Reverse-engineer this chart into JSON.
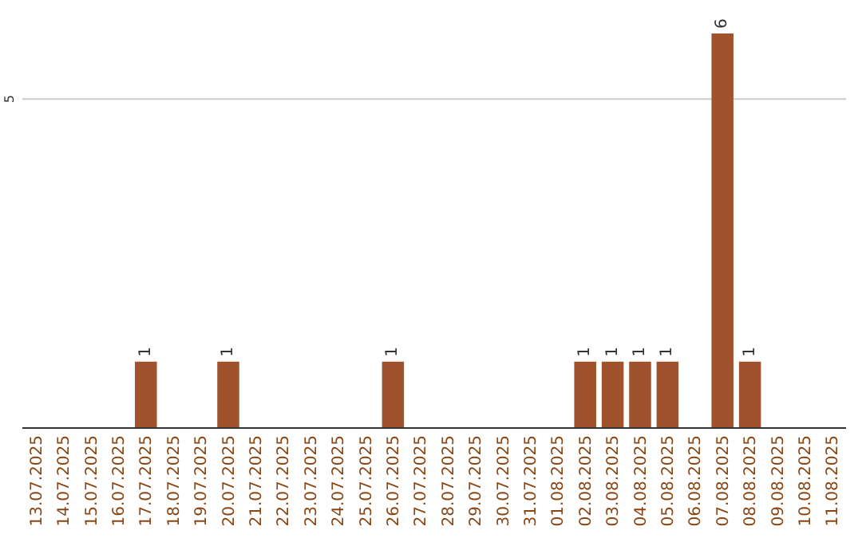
{
  "chart_data": {
    "type": "bar",
    "categories": [
      "13.07.2025",
      "14.07.2025",
      "15.07.2025",
      "16.07.2025",
      "17.07.2025",
      "18.07.2025",
      "19.07.2025",
      "20.07.2025",
      "21.07.2025",
      "22.07.2025",
      "23.07.2025",
      "24.07.2025",
      "25.07.2025",
      "26.07.2025",
      "27.07.2025",
      "28.07.2025",
      "29.07.2025",
      "30.07.2025",
      "31.07.2025",
      "01.08.2025",
      "02.08.2025",
      "03.08.2025",
      "04.08.2025",
      "05.08.2025",
      "06.08.2025",
      "07.08.2025",
      "08.08.2025",
      "09.08.2025",
      "10.08.2025",
      "11.08.2025"
    ],
    "values": [
      0,
      0,
      0,
      0,
      1,
      0,
      0,
      1,
      0,
      0,
      0,
      0,
      0,
      1,
      0,
      0,
      0,
      0,
      0,
      0,
      1,
      1,
      1,
      1,
      0,
      6,
      1,
      0,
      0,
      0
    ],
    "value_labels": [
      null,
      null,
      null,
      null,
      "1",
      null,
      null,
      "1",
      null,
      null,
      null,
      null,
      null,
      "1",
      null,
      null,
      null,
      null,
      null,
      null,
      "1",
      "1",
      "1",
      "1",
      null,
      "6",
      "1",
      null,
      null,
      null
    ],
    "color": "#a0522d",
    "ref_lines": [
      {
        "axis": "y",
        "value": 5,
        "label": "5",
        "color": "#cccccc"
      }
    ],
    "tick_labels": "x",
    "legend": false
  }
}
